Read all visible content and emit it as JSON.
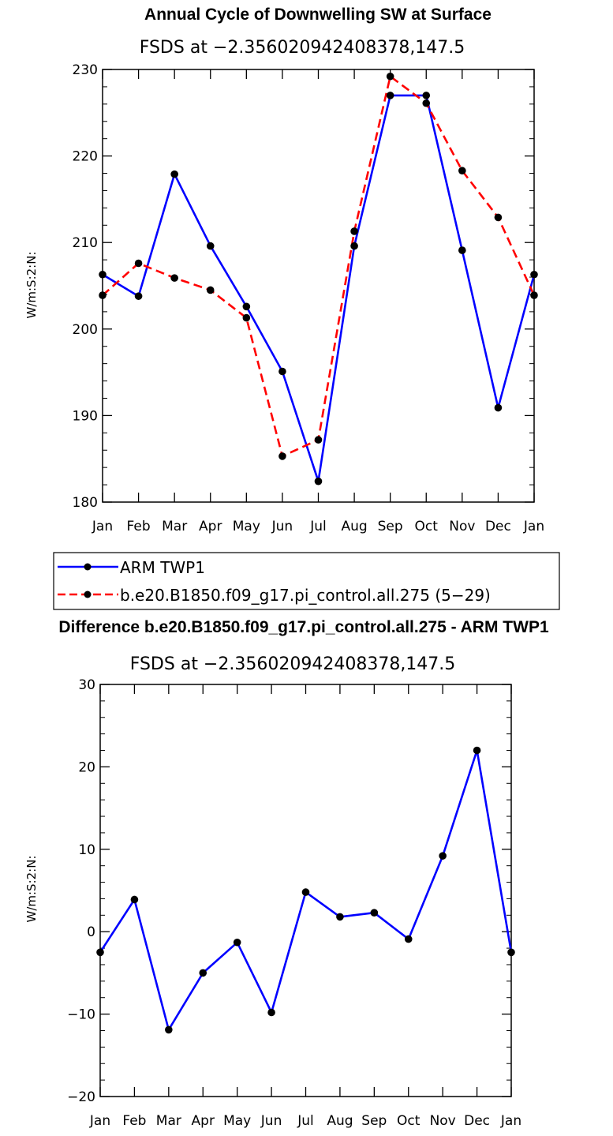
{
  "chart_data": [
    {
      "type": "line",
      "title": "Annual Cycle of Downwelling SW at Surface",
      "subtitle": "FSDS at −2.356020942408378,147.5",
      "xlabel": "",
      "ylabel": "W/m:S:2:N:",
      "categories": [
        "Jan",
        "Feb",
        "Mar",
        "Apr",
        "May",
        "Jun",
        "Jul",
        "Aug",
        "Sep",
        "Oct",
        "Nov",
        "Dec",
        "Jan"
      ],
      "ylim": [
        180,
        230
      ],
      "yticks": [
        "180",
        "190",
        "200",
        "210",
        "220",
        "230"
      ],
      "series": [
        {
          "name": "ARM TWP1",
          "color": "#0000ff",
          "dashed": false,
          "values": [
            206.3,
            203.8,
            217.9,
            209.6,
            202.6,
            195.1,
            182.4,
            209.6,
            227.0,
            227.0,
            209.1,
            190.9,
            206.3
          ]
        },
        {
          "name": "b.e20.B1850.f09_g17.pi_control.all.275 (5−29)",
          "color": "#ff0000",
          "dashed": true,
          "values": [
            203.9,
            207.6,
            205.9,
            204.5,
            201.3,
            185.3,
            187.2,
            211.3,
            229.2,
            226.1,
            218.3,
            212.9,
            203.9
          ]
        }
      ]
    },
    {
      "type": "line",
      "title": "Difference b.e20.B1850.f09_g17.pi_control.all.275 - ARM TWP1",
      "subtitle": "FSDS at −2.356020942408378,147.5",
      "xlabel": "",
      "ylabel": "W/m:S:2:N:",
      "categories": [
        "Jan",
        "Feb",
        "Mar",
        "Apr",
        "May",
        "Jun",
        "Jul",
        "Aug",
        "Sep",
        "Oct",
        "Nov",
        "Dec",
        "Jan"
      ],
      "ylim": [
        -20,
        30
      ],
      "yticks": [
        "−20",
        "−10",
        "0",
        "10",
        "20",
        "30"
      ],
      "series": [
        {
          "name": "Difference",
          "color": "#0000ff",
          "dashed": false,
          "values": [
            -2.5,
            3.9,
            -11.9,
            -5.0,
            -1.3,
            -9.8,
            4.8,
            1.8,
            2.3,
            -0.9,
            9.2,
            22.0,
            -2.5
          ]
        }
      ]
    }
  ]
}
